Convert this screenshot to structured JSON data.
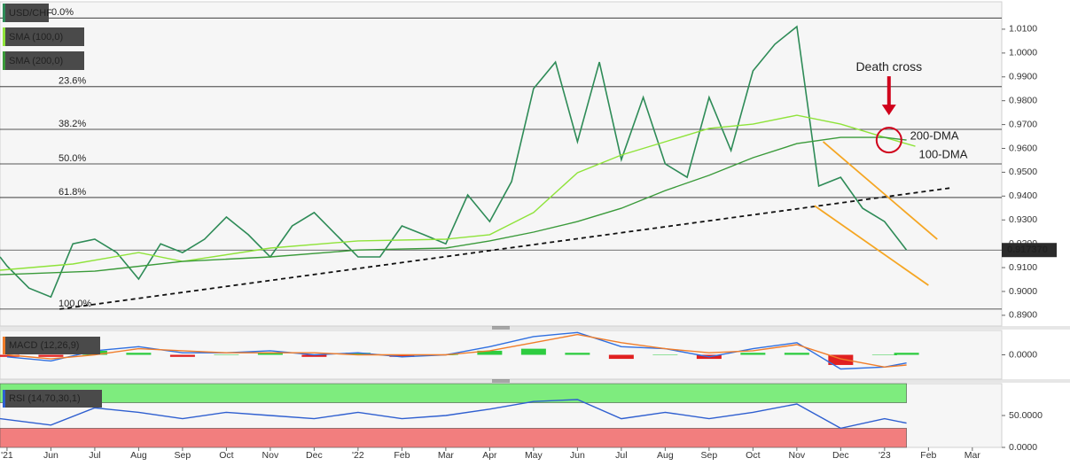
{
  "chart_data": [
    {
      "type": "line",
      "xlim": [
        -0.16,
        22.67
      ],
      "ylim": [
        0.8855,
        1.0215
      ],
      "yticks": [
        {
          "value": 0.89,
          "label": "0.8900"
        },
        {
          "value": 0.9,
          "label": "0.9000"
        },
        {
          "value": 0.91,
          "label": "0.9100"
        },
        {
          "value": 0.92,
          "label": "0.9200"
        },
        {
          "value": 0.93,
          "label": "0.9300"
        },
        {
          "value": 0.94,
          "label": "0.9400"
        },
        {
          "value": 0.95,
          "label": "0.9500"
        },
        {
          "value": 0.96,
          "label": "0.9600"
        },
        {
          "value": 0.97,
          "label": "0.9700"
        },
        {
          "value": 0.98,
          "label": "0.9800"
        },
        {
          "value": 0.99,
          "label": "0.9900"
        },
        {
          "value": 1.0,
          "label": "1.0000"
        },
        {
          "value": 1.01,
          "label": "1.0100"
        }
      ],
      "grid": false,
      "series": [
        {
          "name": "USD/CHF",
          "color": "#2e8b57",
          "x": [
            -0.16,
            0,
            0.5,
            1,
            1.5,
            2,
            2.5,
            3,
            3.5,
            4,
            4.5,
            5,
            5.5,
            6,
            6.5,
            7,
            7.5,
            8,
            8.5,
            9,
            9.5,
            10,
            10.5,
            11,
            11.5,
            12,
            12.5,
            13,
            13.5,
            14,
            14.5,
            15,
            15.5,
            16,
            16.5,
            17,
            17.5,
            18,
            18.5,
            19,
            19.5,
            20,
            20.5
          ],
          "values": [
            0.9145,
            0.9107,
            0.9014,
            0.8977,
            0.92,
            0.9219,
            0.9163,
            0.9052,
            0.92,
            0.9163,
            0.9219,
            0.9312,
            0.9238,
            0.9145,
            0.9275,
            0.9331,
            0.9238,
            0.9145,
            0.9145,
            0.9275,
            0.9238,
            0.92,
            0.9405,
            0.9293,
            0.9461,
            0.9851,
            0.9962,
            0.9628,
            0.9962,
            0.9553,
            0.9814,
            0.9535,
            0.9479,
            0.9814,
            0.9591,
            0.9925,
            1.0037,
            1.0111,
            0.9442,
            0.9479,
            0.9349,
            0.9293,
            0.91737
          ]
        },
        {
          "name": "SMA (100,0)",
          "color": "#8fe33a",
          "end_label": "100-DMA",
          "x": [
            -0.16,
            1.5,
            3,
            4,
            6,
            8,
            10,
            11,
            12,
            13,
            14,
            15,
            16,
            17,
            18,
            19,
            20,
            20.7
          ],
          "values": [
            0.9089,
            0.9115,
            0.9163,
            0.9126,
            0.9182,
            0.9212,
            0.9219,
            0.9238,
            0.9331,
            0.9498,
            0.9572,
            0.9628,
            0.9684,
            0.9702,
            0.9739,
            0.9702,
            0.9646,
            0.9609
          ]
        },
        {
          "name": "SMA (200,0)",
          "color": "#3a9a3a",
          "end_label": "200-DMA",
          "x": [
            -0.16,
            2,
            4,
            6,
            8,
            10,
            11,
            12,
            13,
            14,
            15,
            16,
            17,
            18,
            19,
            20,
            20.5
          ],
          "values": [
            0.907,
            0.9085,
            0.9126,
            0.9145,
            0.9174,
            0.9182,
            0.9212,
            0.9249,
            0.9293,
            0.9349,
            0.9423,
            0.9487,
            0.9561,
            0.962,
            0.9646,
            0.9646,
            0.9635
          ]
        }
      ],
      "levels": [
        {
          "label": "0.0%",
          "value": 1.0147
        },
        {
          "label": "23.6%",
          "value": 0.9859
        },
        {
          "label": "38.2%",
          "value": 0.968
        },
        {
          "label": "50.0%",
          "value": 0.9535
        },
        {
          "label": "61.8%",
          "value": 0.9394
        },
        {
          "label": "100.0%",
          "value": 0.8926
        }
      ],
      "trendlines": [
        {
          "color": "#111111",
          "dashed": true,
          "x": [
            1.2,
            21.5
          ],
          "values": [
            0.8926,
            0.9434
          ]
        },
        {
          "color": "#f5a623",
          "dashed": false,
          "x": [
            18.6,
            21.2
          ],
          "values": [
            0.9628,
            0.9219
          ]
        },
        {
          "color": "#f5a623",
          "dashed": false,
          "x": [
            18.4,
            21.0
          ],
          "values": [
            0.936,
            0.9026
          ]
        }
      ],
      "marker": {
        "text": "Death cross",
        "x": 20.1,
        "value": 0.9635,
        "color": "#d0021b"
      },
      "last_value": {
        "value": 0.91737,
        "label": "0.917370"
      }
    },
    {
      "type": "line",
      "title": "MACD (12,26,9)",
      "xlim": [
        -0.16,
        22.67
      ],
      "ylim": [
        -0.012,
        0.012
      ],
      "yticks": [
        {
          "value": 0,
          "label": "0.0000"
        }
      ],
      "series": [
        {
          "type": "bar",
          "color": "#2ecc40",
          "negative_color": "#e02020",
          "x": [
            0,
            1,
            2,
            3,
            4,
            5,
            6,
            7,
            8,
            9,
            10,
            11,
            12,
            13,
            14,
            15,
            16,
            17,
            18,
            19,
            20,
            20.5
          ],
          "values": [
            -0.001,
            -0.001,
            0.002,
            0.001,
            -0.001,
            0,
            0.001,
            -0.001,
            0.001,
            -0.001,
            0,
            0.002,
            0.003,
            0.001,
            -0.002,
            0,
            -0.002,
            0.001,
            0.001,
            -0.005,
            0,
            0.001
          ]
        },
        {
          "type": "line",
          "color": "#2f6fe0",
          "x": [
            0,
            1,
            2,
            3,
            4,
            5,
            6,
            7,
            8,
            9,
            10,
            11,
            12,
            13,
            14,
            15,
            16,
            17,
            18,
            19,
            20,
            20.5
          ],
          "values": [
            -0.001,
            -0.003,
            0.002,
            0.004,
            0.001,
            0.001,
            0.002,
            0,
            0.001,
            -0.001,
            0,
            0.004,
            0.009,
            0.011,
            0.004,
            0.003,
            -0.001,
            0.003,
            0.006,
            -0.007,
            -0.006,
            -0.004
          ]
        },
        {
          "type": "line",
          "color": "#f07d2a",
          "x": [
            0,
            1,
            2,
            3,
            4,
            5,
            6,
            7,
            8,
            9,
            10,
            11,
            12,
            13,
            14,
            15,
            16,
            17,
            18,
            19,
            20,
            20.5
          ],
          "values": [
            0,
            -0.002,
            0,
            0.003,
            0.002,
            0.001,
            0.001,
            0.001,
            0,
            0,
            0,
            0.002,
            0.006,
            0.01,
            0.006,
            0.003,
            0.001,
            0.002,
            0.005,
            -0.002,
            -0.006,
            -0.005
          ]
        }
      ]
    },
    {
      "type": "line",
      "title": "RSI (14,70,30,1)",
      "xlim": [
        -0.16,
        22.67
      ],
      "ylim": [
        0,
        100
      ],
      "yticks": [
        {
          "value": 0,
          "label": "0.0000"
        },
        {
          "value": 50,
          "label": "50.0000"
        }
      ],
      "bands": [
        {
          "from": 70,
          "to": 100,
          "color": "#7eec7e"
        },
        {
          "from": 0,
          "to": 30,
          "color": "#f27e7e"
        }
      ],
      "series": [
        {
          "type": "line",
          "color": "#2f5fd0",
          "x": [
            -0.16,
            1,
            2,
            3,
            4,
            5,
            6,
            7,
            8,
            9,
            10,
            11,
            12,
            13,
            14,
            15,
            16,
            17,
            18,
            19,
            20,
            20.5
          ],
          "values": [
            45,
            35,
            62,
            55,
            45,
            55,
            50,
            45,
            55,
            45,
            50,
            60,
            72,
            75,
            45,
            55,
            45,
            55,
            68,
            30,
            45,
            38
          ]
        }
      ],
      "xticks": [
        {
          "value": 0,
          "label": "'21"
        },
        {
          "value": 1,
          "label": "Jun"
        },
        {
          "value": 2,
          "label": "Jul"
        },
        {
          "value": 3,
          "label": "Aug"
        },
        {
          "value": 4,
          "label": "Sep"
        },
        {
          "value": 5,
          "label": "Oct"
        },
        {
          "value": 6,
          "label": "Nov"
        },
        {
          "value": 7,
          "label": "Dec"
        },
        {
          "value": 8,
          "label": "'22"
        },
        {
          "value": 9,
          "label": "Feb"
        },
        {
          "value": 10,
          "label": "Mar"
        },
        {
          "value": 11,
          "label": "Apr"
        },
        {
          "value": 12,
          "label": "May"
        },
        {
          "value": 13,
          "label": "Jun"
        },
        {
          "value": 14,
          "label": "Jul"
        },
        {
          "value": 15,
          "label": "Aug"
        },
        {
          "value": 16,
          "label": "Sep"
        },
        {
          "value": 17,
          "label": "Oct"
        },
        {
          "value": 18,
          "label": "Nov"
        },
        {
          "value": 19,
          "label": "Dec"
        },
        {
          "value": 20,
          "label": "'23"
        },
        {
          "value": 21,
          "label": "Feb"
        },
        {
          "value": 22,
          "label": "Mar"
        }
      ]
    }
  ]
}
